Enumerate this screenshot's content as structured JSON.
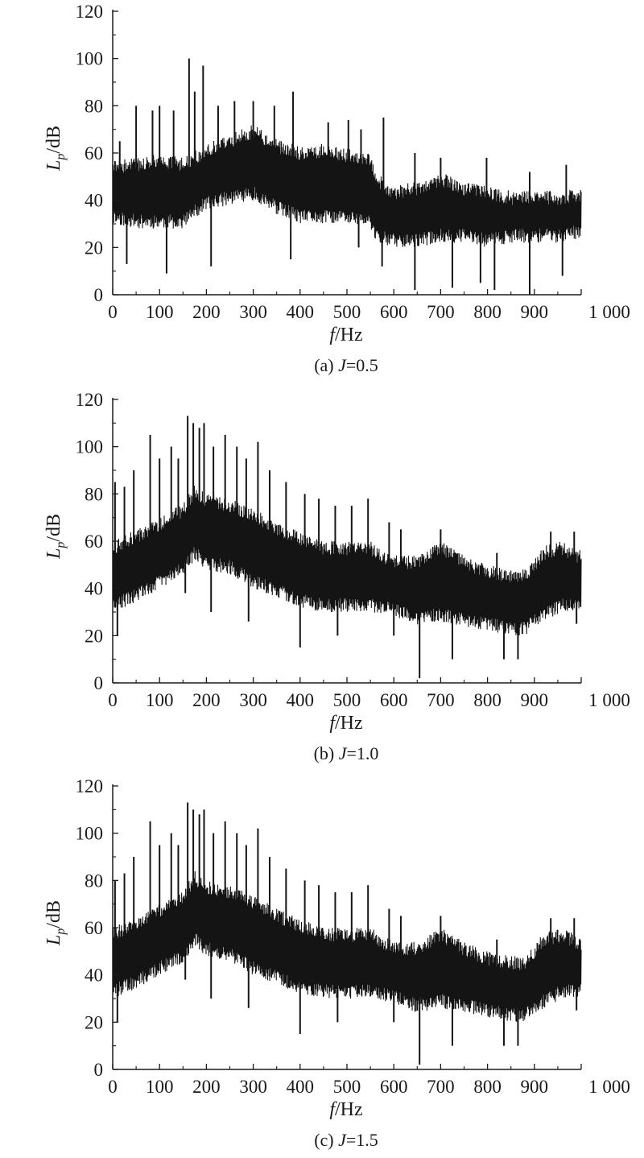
{
  "figures": [
    {
      "chart_data": {
        "type": "line",
        "caption": {
          "prefix": "(a) ",
          "var": "J",
          "value": "=0.5"
        },
        "xlabel": {
          "var": "f",
          "unit": "/Hz"
        },
        "ylabel": {
          "var": "L",
          "sub": "p",
          "unit": "/dB"
        },
        "xlim": [
          0,
          1000
        ],
        "ylim": [
          0,
          120
        ],
        "x_ticks": [
          0,
          100,
          200,
          300,
          400,
          500,
          600,
          700,
          800,
          900,
          1000
        ],
        "x_tick_labels": [
          "0",
          "100",
          "200",
          "300",
          "400",
          "500",
          "600",
          "700",
          "800",
          "900",
          "1 000"
        ],
        "y_ticks": [
          0,
          20,
          40,
          60,
          80,
          100,
          120
        ],
        "y_tick_labels": [
          "0",
          "20",
          "40",
          "60",
          "80",
          "100",
          "120"
        ],
        "grid": false,
        "series_color": "#141414",
        "envelope": {
          "x": [
            0,
            50,
            100,
            150,
            200,
            250,
            300,
            350,
            400,
            450,
            500,
            550,
            560,
            600,
            650,
            700,
            750,
            800,
            850,
            900,
            950,
            1000
          ],
          "upper": [
            57,
            58,
            60,
            58,
            64,
            68,
            72,
            66,
            63,
            64,
            62,
            60,
            52,
            46,
            48,
            52,
            48,
            46,
            44,
            44,
            44,
            45
          ],
          "lower": [
            30,
            28,
            28,
            28,
            36,
            38,
            40,
            34,
            30,
            30,
            30,
            28,
            22,
            20,
            20,
            22,
            22,
            20,
            22,
            22,
            22,
            24
          ]
        },
        "peaks": [
          {
            "x": 15,
            "y": 65
          },
          {
            "x": 50,
            "y": 80
          },
          {
            "x": 85,
            "y": 78
          },
          {
            "x": 100,
            "y": 80
          },
          {
            "x": 130,
            "y": 78
          },
          {
            "x": 163,
            "y": 100
          },
          {
            "x": 175,
            "y": 86
          },
          {
            "x": 193,
            "y": 97
          },
          {
            "x": 225,
            "y": 80
          },
          {
            "x": 260,
            "y": 82
          },
          {
            "x": 300,
            "y": 82
          },
          {
            "x": 345,
            "y": 80
          },
          {
            "x": 385,
            "y": 86
          },
          {
            "x": 460,
            "y": 73
          },
          {
            "x": 503,
            "y": 74
          },
          {
            "x": 530,
            "y": 70
          },
          {
            "x": 578,
            "y": 75
          },
          {
            "x": 645,
            "y": 60
          },
          {
            "x": 700,
            "y": 58
          },
          {
            "x": 798,
            "y": 58
          },
          {
            "x": 890,
            "y": 52
          },
          {
            "x": 968,
            "y": 55
          }
        ],
        "dips": [
          {
            "x": 30,
            "y": 13
          },
          {
            "x": 115,
            "y": 9
          },
          {
            "x": 210,
            "y": 12
          },
          {
            "x": 380,
            "y": 15
          },
          {
            "x": 525,
            "y": 20
          },
          {
            "x": 575,
            "y": 12
          },
          {
            "x": 645,
            "y": 2
          },
          {
            "x": 725,
            "y": 3
          },
          {
            "x": 785,
            "y": 5
          },
          {
            "x": 815,
            "y": 2
          },
          {
            "x": 890,
            "y": 0
          },
          {
            "x": 960,
            "y": 8
          }
        ]
      }
    },
    {
      "chart_data": {
        "type": "line",
        "caption": {
          "prefix": "(b) ",
          "var": "J",
          "value": "=1.0"
        },
        "xlabel": {
          "var": "f",
          "unit": "/Hz"
        },
        "ylabel": {
          "var": "L",
          "sub": "p",
          "unit": "/dB"
        },
        "xlim": [
          0,
          1000
        ],
        "ylim": [
          0,
          120
        ],
        "x_ticks": [
          0,
          100,
          200,
          300,
          400,
          500,
          600,
          700,
          800,
          900,
          1000
        ],
        "x_tick_labels": [
          "0",
          "100",
          "200",
          "300",
          "400",
          "500",
          "600",
          "700",
          "800",
          "900",
          "1 000"
        ],
        "y_ticks": [
          0,
          20,
          40,
          60,
          80,
          100,
          120
        ],
        "y_tick_labels": [
          "0",
          "20",
          "40",
          "60",
          "80",
          "100",
          "120"
        ],
        "grid": false,
        "series_color": "#141414",
        "envelope": {
          "x": [
            0,
            50,
            100,
            150,
            175,
            200,
            250,
            300,
            350,
            400,
            450,
            500,
            550,
            600,
            650,
            700,
            750,
            800,
            850,
            880,
            920,
            960,
            1000
          ],
          "upper": [
            60,
            65,
            70,
            76,
            84,
            80,
            78,
            74,
            68,
            64,
            60,
            60,
            60,
            54,
            54,
            60,
            54,
            50,
            48,
            48,
            58,
            60,
            56
          ],
          "lower": [
            30,
            34,
            40,
            45,
            52,
            48,
            46,
            40,
            36,
            32,
            30,
            30,
            30,
            28,
            24,
            26,
            24,
            22,
            20,
            20,
            26,
            30,
            30
          ]
        },
        "peaks": [
          {
            "x": 5,
            "y": 85
          },
          {
            "x": 25,
            "y": 83
          },
          {
            "x": 45,
            "y": 90
          },
          {
            "x": 80,
            "y": 105
          },
          {
            "x": 100,
            "y": 95
          },
          {
            "x": 125,
            "y": 100
          },
          {
            "x": 140,
            "y": 95
          },
          {
            "x": 160,
            "y": 113
          },
          {
            "x": 172,
            "y": 110
          },
          {
            "x": 185,
            "y": 108
          },
          {
            "x": 195,
            "y": 110
          },
          {
            "x": 215,
            "y": 100
          },
          {
            "x": 240,
            "y": 105
          },
          {
            "x": 265,
            "y": 100
          },
          {
            "x": 285,
            "y": 95
          },
          {
            "x": 310,
            "y": 102
          },
          {
            "x": 335,
            "y": 90
          },
          {
            "x": 370,
            "y": 85
          },
          {
            "x": 410,
            "y": 80
          },
          {
            "x": 440,
            "y": 78
          },
          {
            "x": 475,
            "y": 75
          },
          {
            "x": 510,
            "y": 75
          },
          {
            "x": 545,
            "y": 78
          },
          {
            "x": 590,
            "y": 68
          },
          {
            "x": 615,
            "y": 65
          },
          {
            "x": 700,
            "y": 65
          },
          {
            "x": 820,
            "y": 55
          },
          {
            "x": 935,
            "y": 64
          },
          {
            "x": 985,
            "y": 64
          }
        ],
        "dips": [
          {
            "x": 10,
            "y": 20
          },
          {
            "x": 155,
            "y": 38
          },
          {
            "x": 210,
            "y": 30
          },
          {
            "x": 290,
            "y": 26
          },
          {
            "x": 400,
            "y": 15
          },
          {
            "x": 480,
            "y": 20
          },
          {
            "x": 600,
            "y": 20
          },
          {
            "x": 655,
            "y": 2
          },
          {
            "x": 725,
            "y": 10
          },
          {
            "x": 835,
            "y": 10
          },
          {
            "x": 865,
            "y": 10
          },
          {
            "x": 990,
            "y": 25
          }
        ]
      }
    },
    {
      "chart_data": {
        "type": "line",
        "caption": {
          "prefix": "(c) ",
          "var": "J",
          "value": "=1.5"
        },
        "xlabel": {
          "var": "f",
          "unit": "/Hz"
        },
        "ylabel": {
          "var": "L",
          "sub": "p",
          "unit": "/dB"
        },
        "xlim": [
          0,
          1000
        ],
        "ylim": [
          0,
          120
        ],
        "x_ticks": [
          0,
          100,
          200,
          300,
          400,
          500,
          600,
          700,
          800,
          900,
          1000
        ],
        "x_tick_labels": [
          "0",
          "100",
          "200",
          "300",
          "400",
          "500",
          "600",
          "700",
          "800",
          "900",
          "1 000"
        ],
        "y_ticks": [
          0,
          20,
          40,
          60,
          80,
          100,
          120
        ],
        "y_tick_labels": [
          "0",
          "20",
          "40",
          "60",
          "80",
          "100",
          "120"
        ],
        "grid": false,
        "series_color": "#141414",
        "envelope": {
          "x": [
            0,
            50,
            100,
            150,
            175,
            200,
            250,
            300,
            350,
            400,
            450,
            500,
            550,
            600,
            650,
            700,
            750,
            800,
            850,
            880,
            920,
            960,
            1000
          ],
          "upper": [
            60,
            65,
            70,
            76,
            84,
            80,
            78,
            74,
            68,
            64,
            60,
            60,
            60,
            54,
            54,
            60,
            54,
            50,
            48,
            48,
            58,
            60,
            56
          ],
          "lower": [
            30,
            34,
            40,
            45,
            52,
            48,
            46,
            40,
            36,
            32,
            30,
            30,
            30,
            28,
            24,
            26,
            24,
            22,
            20,
            20,
            26,
            30,
            30
          ]
        },
        "peaks": [
          {
            "x": 5,
            "y": 80
          },
          {
            "x": 25,
            "y": 83
          },
          {
            "x": 45,
            "y": 90
          },
          {
            "x": 80,
            "y": 105
          },
          {
            "x": 100,
            "y": 95
          },
          {
            "x": 125,
            "y": 100
          },
          {
            "x": 140,
            "y": 95
          },
          {
            "x": 160,
            "y": 113
          },
          {
            "x": 172,
            "y": 110
          },
          {
            "x": 185,
            "y": 108
          },
          {
            "x": 195,
            "y": 110
          },
          {
            "x": 215,
            "y": 100
          },
          {
            "x": 240,
            "y": 105
          },
          {
            "x": 265,
            "y": 100
          },
          {
            "x": 285,
            "y": 95
          },
          {
            "x": 310,
            "y": 102
          },
          {
            "x": 335,
            "y": 90
          },
          {
            "x": 370,
            "y": 85
          },
          {
            "x": 410,
            "y": 80
          },
          {
            "x": 440,
            "y": 78
          },
          {
            "x": 475,
            "y": 75
          },
          {
            "x": 510,
            "y": 75
          },
          {
            "x": 545,
            "y": 78
          },
          {
            "x": 590,
            "y": 68
          },
          {
            "x": 615,
            "y": 65
          },
          {
            "x": 700,
            "y": 65
          },
          {
            "x": 820,
            "y": 55
          },
          {
            "x": 935,
            "y": 64
          },
          {
            "x": 985,
            "y": 64
          }
        ],
        "dips": [
          {
            "x": 10,
            "y": 20
          },
          {
            "x": 155,
            "y": 38
          },
          {
            "x": 210,
            "y": 30
          },
          {
            "x": 290,
            "y": 26
          },
          {
            "x": 400,
            "y": 15
          },
          {
            "x": 480,
            "y": 20
          },
          {
            "x": 600,
            "y": 20
          },
          {
            "x": 655,
            "y": 2
          },
          {
            "x": 725,
            "y": 10
          },
          {
            "x": 835,
            "y": 10
          },
          {
            "x": 865,
            "y": 10
          },
          {
            "x": 990,
            "y": 25
          }
        ]
      }
    }
  ]
}
